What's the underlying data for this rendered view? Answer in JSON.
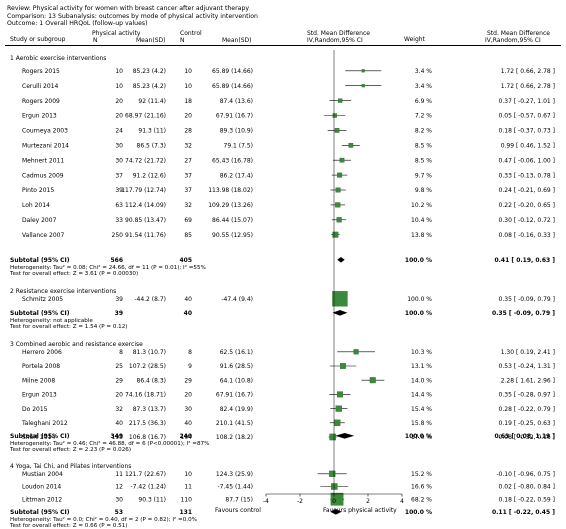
{
  "header": {
    "review": "Review:  Physical activity for women with breast cancer after adjuvant therapy",
    "comparison": "Comparison:  13 Subanalysis: outcomes by mode of physical activity intervention",
    "outcome": "Outcome:  1 Overall HRQoL (follow-up values)"
  },
  "columns": {
    "study": "Study or subgroup",
    "group1": "Physical activity",
    "group2": "Control",
    "n": "N",
    "meansd": "Mean(SD)",
    "smd_title": "Std. Mean Difference",
    "smd_method": "IV,Random,95% CI",
    "weight": "Weight",
    "smd2_title": "Std. Mean Difference",
    "smd2_method": "IV,Random,95% CI"
  },
  "chart_data": {
    "type": "forest",
    "xlim": [
      -4,
      4
    ],
    "xticks": [
      "-4",
      "-2",
      "0",
      "2",
      "4"
    ],
    "favours_left": "Favours control",
    "favours_right": "Favours physical activity",
    "subgroups": [
      {
        "title": "1 Aerobic exercise interventions",
        "studies": [
          {
            "name": "Rogers 2015",
            "n1": "10",
            "m1": "85.23 (4.2)",
            "n2": "10",
            "m2": "65.89 (14.66)",
            "weight": "3.4 %",
            "ci_text": "1.72 [ 0.66, 2.78 ]",
            "est": 1.72,
            "lo": 0.66,
            "hi": 2.78,
            "w": 3.4
          },
          {
            "name": "Cerulli 2014",
            "n1": "10",
            "m1": "85.23 (4.2)",
            "n2": "10",
            "m2": "65.89 (14.66)",
            "weight": "3.4 %",
            "ci_text": "1.72 [ 0.66, 2.78 ]",
            "est": 1.72,
            "lo": 0.66,
            "hi": 2.78,
            "w": 3.4
          },
          {
            "name": "Rogers 2009",
            "n1": "20",
            "m1": "92 (11.4)",
            "n2": "18",
            "m2": "87.4 (13.6)",
            "weight": "6.9 %",
            "ci_text": "0.37 [ -0.27, 1.01 ]",
            "est": 0.37,
            "lo": -0.27,
            "hi": 1.01,
            "w": 6.9
          },
          {
            "name": "Ergun 2013",
            "n1": "20",
            "m1": "68.97 (21.16)",
            "n2": "20",
            "m2": "67.91 (16.7)",
            "weight": "7.2 %",
            "ci_text": "0.05 [ -0.57, 0.67 ]",
            "est": 0.05,
            "lo": -0.57,
            "hi": 0.67,
            "w": 7.2
          },
          {
            "name": "Courneya 2003",
            "n1": "24",
            "m1": "91.3 (11)",
            "n2": "28",
            "m2": "89.3 (10.9)",
            "weight": "8.2 %",
            "ci_text": "0.18 [ -0.37, 0.73 ]",
            "est": 0.18,
            "lo": -0.37,
            "hi": 0.73,
            "w": 8.2
          },
          {
            "name": "Murtezani 2014",
            "n1": "30",
            "m1": "86.5 (7.3)",
            "n2": "32",
            "m2": "79.1 (7.5)",
            "weight": "8.5 %",
            "ci_text": "0.99 [ 0.46, 1.52 ]",
            "est": 0.99,
            "lo": 0.46,
            "hi": 1.52,
            "w": 8.5
          },
          {
            "name": "Mehnert 2011",
            "n1": "30",
            "m1": "74.72 (21.72)",
            "n2": "27",
            "m2": "65.43 (16.78)",
            "weight": "8.5 %",
            "ci_text": "0.47 [ -0.06, 1.00 ]",
            "est": 0.47,
            "lo": -0.06,
            "hi": 1.0,
            "w": 8.5
          },
          {
            "name": "Cadmus 2009",
            "n1": "37",
            "m1": "91.2 (12.6)",
            "n2": "37",
            "m2": "86.2 (17.4)",
            "weight": "9.7 %",
            "ci_text": "0.33 [ -0.13, 0.78 ]",
            "est": 0.33,
            "lo": -0.13,
            "hi": 0.78,
            "w": 9.7
          },
          {
            "name": "Pinto 2015",
            "n1": "39",
            "m1": "117.79 (12.74)",
            "n2": "37",
            "m2": "113.98 (18.02)",
            "weight": "9.8 %",
            "ci_text": "0.24 [ -0.21, 0.69 ]",
            "est": 0.24,
            "lo": -0.21,
            "hi": 0.69,
            "w": 9.8
          },
          {
            "name": "Loh 2014",
            "n1": "63",
            "m1": "112.4 (14.09)",
            "n2": "32",
            "m2": "109.29 (13.26)",
            "weight": "10.2 %",
            "ci_text": "0.22 [ -0.20, 0.65 ]",
            "est": 0.22,
            "lo": -0.2,
            "hi": 0.65,
            "w": 10.2
          },
          {
            "name": "Daley 2007",
            "n1": "33",
            "m1": "90.85 (13.47)",
            "n2": "69",
            "m2": "86.44 (15.07)",
            "weight": "10.4 %",
            "ci_text": "0.30 [ -0.12, 0.72 ]",
            "est": 0.3,
            "lo": -0.12,
            "hi": 0.72,
            "w": 10.4
          },
          {
            "name": "Vallance 2007",
            "n1": "250",
            "m1": "91.54 (11.76)",
            "n2": "85",
            "m2": "90.55 (12.95)",
            "weight": "13.8 %",
            "ci_text": "0.08 [ -0.16, 0.33 ]",
            "est": 0.08,
            "lo": -0.16,
            "hi": 0.33,
            "w": 13.8
          }
        ],
        "subtotal": {
          "label": "Subtotal (95% CI)",
          "n1": "566",
          "n2": "405",
          "weight": "100.0 %",
          "ci_text": "0.41 [ 0.19, 0.63 ]",
          "est": 0.41,
          "lo": 0.19,
          "hi": 0.63
        },
        "heterogeneity": "Heterogeneity: Tau² = 0.08; Chi² = 24.66, df = 11 (P = 0.01); I² =55%",
        "overall_effect": "Test for overall effect: Z = 3.61 (P = 0.00030)"
      },
      {
        "title": "2 Resistance exercise interventions",
        "studies": [
          {
            "name": "Schmitz 2005",
            "n1": "39",
            "m1": "-44.2 (8.7)",
            "n2": "40",
            "m2": "-47.4 (9.4)",
            "weight": "100.0 %",
            "ci_text": "0.35 [ -0.09, 0.79 ]",
            "est": 0.35,
            "lo": -0.09,
            "hi": 0.79,
            "w": 100
          }
        ],
        "subtotal": {
          "label": "Subtotal (95% CI)",
          "n1": "39",
          "n2": "40",
          "weight": "100.0 %",
          "ci_text": "0.35 [ -0.09, 0.79 ]",
          "est": 0.35,
          "lo": -0.09,
          "hi": 0.79
        },
        "heterogeneity": "Heterogeneity: not applicable",
        "overall_effect": "Test for overall effect: Z = 1.54 (P = 0.12)"
      },
      {
        "title": "3 Combined aerobic and resistance exercise",
        "studies": [
          {
            "name": "Herrero 2006",
            "n1": "8",
            "m1": "81.3 (10.7)",
            "n2": "8",
            "m2": "62.5 (16.1)",
            "weight": "10.3 %",
            "ci_text": "1.30 [ 0.19, 2.41 ]",
            "est": 1.3,
            "lo": 0.19,
            "hi": 2.41,
            "w": 10.3
          },
          {
            "name": "Portela 2008",
            "n1": "25",
            "m1": "107.2 (28.5)",
            "n2": "9",
            "m2": "91.6 (28.5)",
            "weight": "13.1 %",
            "ci_text": "0.53 [ -0.24, 1.31 ]",
            "est": 0.53,
            "lo": -0.24,
            "hi": 1.31,
            "w": 13.1
          },
          {
            "name": "Milne 2008",
            "n1": "29",
            "m1": "86.4 (8.3)",
            "n2": "29",
            "m2": "64.1 (10.8)",
            "weight": "14.0 %",
            "ci_text": "2.28 [ 1.61, 2.96 ]",
            "est": 2.28,
            "lo": 1.61,
            "hi": 2.96,
            "w": 14.0
          },
          {
            "name": "Ergun 2013",
            "n1": "20",
            "m1": "74.16 (18.71)",
            "n2": "20",
            "m2": "67.91 (16.7)",
            "weight": "14.4 %",
            "ci_text": "0.35 [ -0.28, 0.97 ]",
            "est": 0.35,
            "lo": -0.28,
            "hi": 0.97,
            "w": 14.4
          },
          {
            "name": "Do 2015",
            "n1": "32",
            "m1": "87.3 (13.7)",
            "n2": "30",
            "m2": "82.4 (19.9)",
            "weight": "15.4 %",
            "ci_text": "0.28 [ -0.22, 0.79 ]",
            "est": 0.28,
            "lo": -0.22,
            "hi": 0.79,
            "w": 15.4
          },
          {
            "name": "Taleghani 2012",
            "n1": "40",
            "m1": "217.5 (36.3)",
            "n2": "40",
            "m2": "210.1 (41.5)",
            "weight": "15.8 %",
            "ci_text": "0.19 [ -0.25, 0.63 ]",
            "est": 0.19,
            "lo": -0.25,
            "hi": 0.63,
            "w": 15.8
          },
          {
            "name": "Short 2014",
            "n1": "195",
            "m1": "106.8 (16.7)",
            "n2": "104",
            "m2": "108.2 (18.2)",
            "weight": "17.0 %",
            "ci_text": "-0.08 [ -0.32, 0.16 ]",
            "est": -0.08,
            "lo": -0.32,
            "hi": 0.16,
            "w": 17.0
          }
        ],
        "subtotal": {
          "label": "Subtotal (95% CI)",
          "n1": "349",
          "n2": "240",
          "weight": "100.0 %",
          "ci_text": "0.63 [ 0.08, 1.19 ]",
          "est": 0.63,
          "lo": 0.08,
          "hi": 1.19
        },
        "heterogeneity": "Heterogeneity: Tau² = 0.46; Chi² = 46.88, df = 6 (P<0.00001); I² =87%",
        "overall_effect": "Test for overall effect: Z = 2.23 (P = 0.026)"
      },
      {
        "title": "4 Yoga, Tai Chi, and Pilates interventions",
        "studies": [
          {
            "name": "Mustian 2004",
            "n1": "11",
            "m1": "121.7 (22.67)",
            "n2": "10",
            "m2": "124.3 (25.9)",
            "weight": "15.2 %",
            "ci_text": "-0.10 [ -0.96, 0.75 ]",
            "est": -0.1,
            "lo": -0.96,
            "hi": 0.75,
            "w": 15.2
          },
          {
            "name": "Loudon 2014",
            "n1": "12",
            "m1": "-7.42 (1.24)",
            "n2": "11",
            "m2": "-7.45 (1.44)",
            "weight": "16.6 %",
            "ci_text": "0.02 [ -0.80, 0.84 ]",
            "est": 0.02,
            "lo": -0.8,
            "hi": 0.84,
            "w": 16.6
          },
          {
            "name": "Littman 2012",
            "n1": "30",
            "m1": "90.3 (11)",
            "n2": "110",
            "m2": "87.7 (15)",
            "weight": "68.2 %",
            "ci_text": "0.18 [ -0.22, 0.59 ]",
            "est": 0.18,
            "lo": -0.22,
            "hi": 0.59,
            "w": 68.2
          }
        ],
        "subtotal": {
          "label": "Subtotal (95% CI)",
          "n1": "53",
          "n2": "131",
          "weight": "100.0 %",
          "ci_text": "0.11 [ -0.22, 0.45 ]",
          "est": 0.11,
          "lo": -0.22,
          "hi": 0.45
        },
        "heterogeneity": "Heterogeneity: Tau² = 0.0; Chi² = 0.40, df = 2 (P = 0.82); I² =0.0%",
        "overall_effect": "Test for overall effect: Z = 0.66 (P = 0.51)"
      }
    ]
  }
}
